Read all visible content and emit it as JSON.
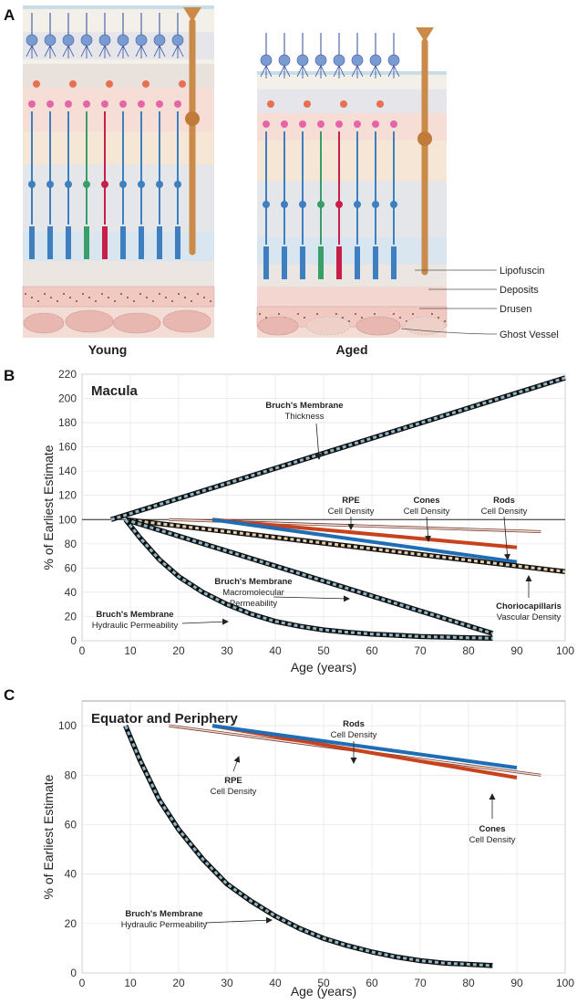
{
  "panel_a": {
    "letter": "A",
    "captions": {
      "young": "Young",
      "aged": "Aged"
    },
    "labels": [
      "Lipofuscin",
      "Deposits",
      "Drusen",
      "Ghost Vessel"
    ],
    "colors": {
      "ganglion": "#7a9bd1",
      "dendrite": "#2e4a9e",
      "amacrine": "#e86f52",
      "bipolar": "#e466a8",
      "rod": "#3e7fbf",
      "cone_green": "#3a9e6a",
      "cone_red": "#c81e4a",
      "muller": "#c98a4a",
      "rpe": "#f2c9c0",
      "choroid": "#e8b8b0"
    }
  },
  "chart_data": [
    {
      "panel": "B",
      "type": "line",
      "title": "Macula",
      "xlabel": "Age (years)",
      "ylabel": "% of Earliest Estimate",
      "xlim": [
        0,
        100
      ],
      "ylim": [
        0,
        220
      ],
      "xticks": [
        0,
        10,
        20,
        30,
        40,
        50,
        60,
        70,
        80,
        90,
        100
      ],
      "yticks": [
        0,
        20,
        40,
        60,
        80,
        100,
        120,
        140,
        160,
        180,
        200,
        220
      ],
      "reference_line": 100,
      "series": [
        {
          "id": "bm_thickness",
          "style": "striped",
          "color": "#8fb8c8",
          "x": [
            6,
            100
          ],
          "y": [
            100,
            217
          ]
        },
        {
          "id": "rpe",
          "style": "thin",
          "color": "#c87a6a",
          "x": [
            18,
            95
          ],
          "y": [
            100,
            90
          ]
        },
        {
          "id": "cones",
          "style": "solid",
          "color": "#c8421e",
          "x": [
            27,
            90
          ],
          "y": [
            100,
            77
          ]
        },
        {
          "id": "rods",
          "style": "solid",
          "color": "#1f6db5",
          "x": [
            27,
            90
          ],
          "y": [
            100,
            65
          ]
        },
        {
          "id": "choriocapillaris",
          "style": "striped",
          "color": "#e5cda9",
          "x": [
            9,
            100
          ],
          "y": [
            100,
            57
          ]
        },
        {
          "id": "bm_macromolecular",
          "style": "striped",
          "color": "#8fb8c8",
          "x": [
            9,
            85
          ],
          "y": [
            100,
            6
          ]
        },
        {
          "id": "bm_hydraulic",
          "style": "striped",
          "color": "#8fb8c8",
          "x": [
            9,
            12,
            16,
            20,
            25,
            30,
            35,
            40,
            45,
            50,
            55,
            60,
            65,
            70,
            75,
            80,
            85
          ],
          "y": [
            100,
            85,
            67,
            53,
            40,
            30,
            22,
            16,
            12,
            9,
            7,
            5.5,
            4.5,
            3.5,
            3,
            2.5,
            2
          ]
        }
      ],
      "labels": [
        {
          "series": "bm_thickness",
          "bold": "Bruch's Membrane",
          "normal": "Thickness"
        },
        {
          "series": "rpe",
          "bold": "RPE",
          "normal": "Cell Density"
        },
        {
          "series": "cones",
          "bold": "Cones",
          "normal": "Cell Density"
        },
        {
          "series": "rods",
          "bold": "Rods",
          "normal": "Cell Density"
        },
        {
          "series": "bm_macromolecular",
          "bold": "Bruch's Membrane",
          "normal": "Macromolecular",
          "normal2": "Permeability"
        },
        {
          "series": "choriocapillaris",
          "bold": "Choriocapillaris",
          "normal": "Vascular Density"
        },
        {
          "series": "bm_hydraulic",
          "bold": "Bruch's Membrane",
          "normal": "Hydraulic Permeability"
        }
      ]
    },
    {
      "panel": "C",
      "type": "line",
      "title": "Equator and Periphery",
      "xlabel": "Age (years)",
      "ylabel": "% of Earliest Estimate",
      "xlim": [
        0,
        100
      ],
      "ylim": [
        0,
        110
      ],
      "xticks": [
        0,
        10,
        20,
        30,
        40,
        50,
        60,
        70,
        80,
        90,
        100
      ],
      "yticks": [
        0,
        20,
        40,
        60,
        80,
        100
      ],
      "series": [
        {
          "id": "rpe",
          "style": "thin",
          "color": "#c87a6a",
          "x": [
            18,
            95
          ],
          "y": [
            100,
            80
          ]
        },
        {
          "id": "cones",
          "style": "solid",
          "color": "#c8421e",
          "x": [
            27,
            90
          ],
          "y": [
            100,
            79
          ]
        },
        {
          "id": "rods",
          "style": "solid",
          "color": "#1f6db5",
          "x": [
            27,
            90
          ],
          "y": [
            100,
            83
          ]
        },
        {
          "id": "bm_hydraulic",
          "style": "striped",
          "color": "#8fb8c8",
          "x": [
            9,
            12,
            16,
            20,
            25,
            30,
            35,
            40,
            45,
            50,
            55,
            60,
            65,
            70,
            75,
            80,
            85
          ],
          "y": [
            100,
            86,
            70,
            58,
            46,
            36,
            29,
            23,
            18,
            14,
            11,
            8.5,
            6.5,
            5,
            4,
            3.5,
            3
          ]
        }
      ],
      "labels": [
        {
          "series": "rods",
          "bold": "Rods",
          "normal": "Cell Density"
        },
        {
          "series": "rpe",
          "bold": "RPE",
          "normal": "Cell Density"
        },
        {
          "series": "cones",
          "bold": "Cones",
          "normal": "Cell Density"
        },
        {
          "series": "bm_hydraulic",
          "bold": "Bruch's Membrane",
          "normal": "Hydraulic Permeability"
        }
      ]
    }
  ]
}
